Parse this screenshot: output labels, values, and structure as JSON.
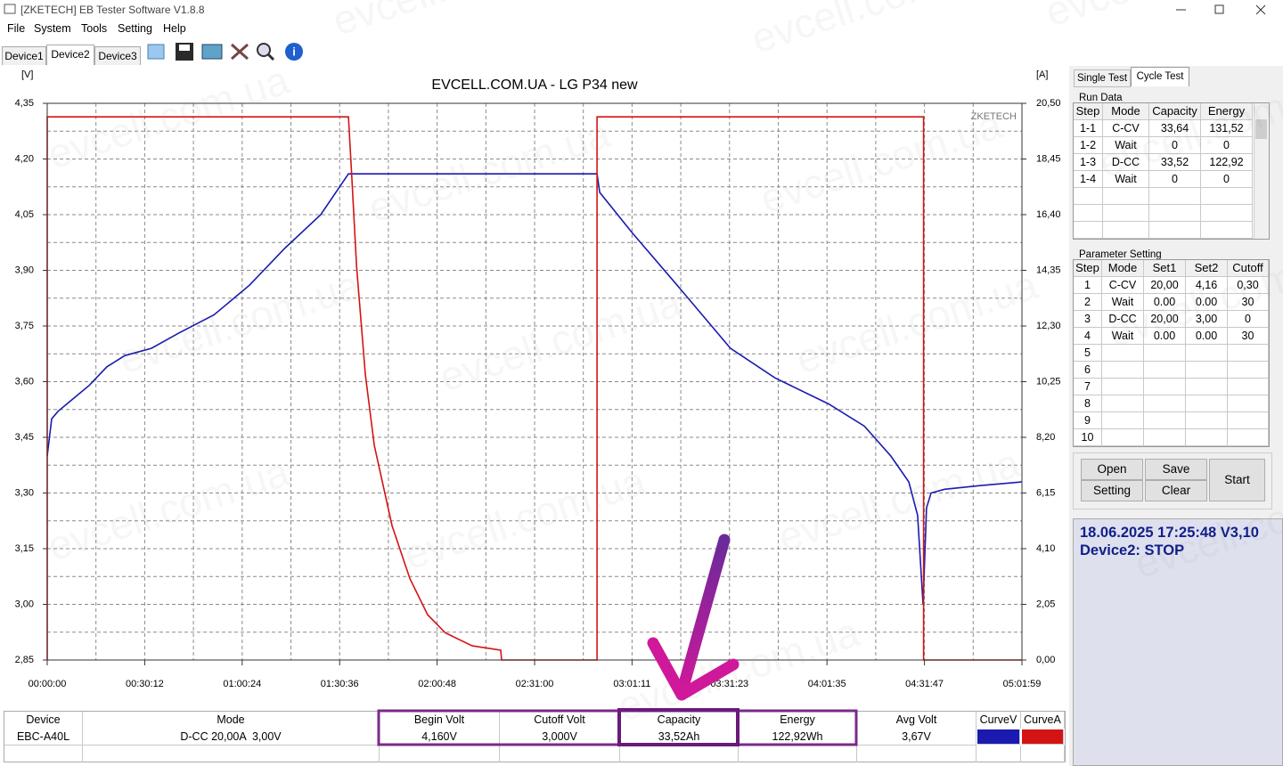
{
  "window": {
    "title": "[ZKETECH] EB Tester Software V1.8.8"
  },
  "menu": [
    "File",
    "System",
    "Tools",
    "Setting",
    "Help"
  ],
  "device_tabs": [
    "Device1",
    "Device2",
    "Device3"
  ],
  "watermark": "evcell.com.ua",
  "chart_data": {
    "type": "line",
    "title": "EVCELL.COM.UA - LG P34 new",
    "y_label": "[V]",
    "y2_label": "[A]",
    "brand": "ZKETECH",
    "grid": true,
    "xlim": [
      0,
      18119
    ],
    "xticks": [
      {
        "value": 0,
        "label": "00:00:00"
      },
      {
        "value": 1812,
        "label": "00:30:12"
      },
      {
        "value": 3624,
        "label": "01:00:24"
      },
      {
        "value": 5436,
        "label": "01:30:36"
      },
      {
        "value": 7248,
        "label": "02:00:48"
      },
      {
        "value": 9060,
        "label": "02:31:00"
      },
      {
        "value": 10871,
        "label": "03:01:11"
      },
      {
        "value": 12683,
        "label": "03:31:23"
      },
      {
        "value": 14495,
        "label": "04:01:35"
      },
      {
        "value": 16307,
        "label": "04:31:47"
      },
      {
        "value": 18119,
        "label": "05:01:59"
      }
    ],
    "ylim": [
      2.85,
      4.35
    ],
    "yticks": [
      {
        "value": 2.85,
        "label": "2,85"
      },
      {
        "value": 3.0,
        "label": "3,00"
      },
      {
        "value": 3.15,
        "label": "3,15"
      },
      {
        "value": 3.3,
        "label": "3,30"
      },
      {
        "value": 3.45,
        "label": "3,45"
      },
      {
        "value": 3.6,
        "label": "3,60"
      },
      {
        "value": 3.75,
        "label": "3,75"
      },
      {
        "value": 3.9,
        "label": "3,90"
      },
      {
        "value": 4.05,
        "label": "4,05"
      },
      {
        "value": 4.2,
        "label": "4,20"
      },
      {
        "value": 4.35,
        "label": "4,35"
      }
    ],
    "y2lim": [
      0,
      20.5
    ],
    "y2ticks": [
      {
        "value": 0,
        "label": "0,00"
      },
      {
        "value": 2.05,
        "label": "2,05"
      },
      {
        "value": 4.1,
        "label": "4,10"
      },
      {
        "value": 6.15,
        "label": "6,15"
      },
      {
        "value": 8.2,
        "label": "8,20"
      },
      {
        "value": 10.25,
        "label": "10,25"
      },
      {
        "value": 12.3,
        "label": "12,30"
      },
      {
        "value": 14.35,
        "label": "14,35"
      },
      {
        "value": 16.4,
        "label": "16,40"
      },
      {
        "value": 18.45,
        "label": "18,45"
      },
      {
        "value": 20.5,
        "label": "20,50"
      }
    ],
    "series": [
      {
        "name": "CurveV",
        "color": "#1a1ab0",
        "x": [
          0,
          83,
          200,
          450,
          780,
          1110,
          1440,
          1940,
          2435,
          3100,
          3760,
          4420,
          5085,
          5600,
          10220,
          10270,
          10880,
          11710,
          12700,
          13530,
          14525,
          15190,
          15680,
          16015,
          16180,
          16280,
          16345,
          16430,
          16680,
          17340,
          18119
        ],
        "values": [
          3.4,
          3.5,
          3.52,
          3.55,
          3.59,
          3.64,
          3.67,
          3.69,
          3.73,
          3.78,
          3.86,
          3.96,
          4.05,
          4.16,
          4.16,
          4.11,
          4.0,
          3.86,
          3.69,
          3.61,
          3.54,
          3.48,
          3.4,
          3.33,
          3.24,
          3.0,
          3.26,
          3.3,
          3.31,
          3.32,
          3.33
        ]
      },
      {
        "name": "CurveA",
        "color": "#d41414",
        "axis": "y2",
        "x": [
          0,
          0,
          5600,
          5665,
          5750,
          5915,
          6080,
          6410,
          6740,
          7070,
          7400,
          7900,
          8430,
          8447,
          10220,
          10220,
          16290,
          16290,
          18119
        ],
        "values": [
          0,
          20.0,
          20.0,
          17.7,
          14.5,
          10.5,
          7.9,
          4.95,
          3.0,
          1.67,
          1.0,
          0.52,
          0.36,
          0,
          0,
          20.0,
          20.0,
          0,
          0
        ]
      }
    ]
  },
  "side_tabs": [
    "Single Test",
    "Cycle Test"
  ],
  "run_data": {
    "label": "Run Data",
    "columns": [
      "Step",
      "Mode",
      "Capacity",
      "Energy"
    ],
    "rows": [
      [
        "1-1",
        "C-CV",
        "33,64",
        "131,52"
      ],
      [
        "1-2",
        "Wait",
        "0",
        "0"
      ],
      [
        "1-3",
        "D-CC",
        "33,52",
        "122,92"
      ],
      [
        "1-4",
        "Wait",
        "0",
        "0"
      ]
    ]
  },
  "parameter_setting": {
    "label": "Parameter Setting",
    "columns": [
      "Step",
      "Mode",
      "Set1",
      "Set2",
      "Cutoff"
    ],
    "rows": [
      [
        "1",
        "C-CV",
        "20,00",
        "4,16",
        "0,30"
      ],
      [
        "2",
        "Wait",
        "0.00",
        "0.00",
        "30"
      ],
      [
        "3",
        "D-CC",
        "20,00",
        "3,00",
        "0"
      ],
      [
        "4",
        "Wait",
        "0.00",
        "0.00",
        "30"
      ],
      [
        "5"
      ],
      [
        "6"
      ],
      [
        "7"
      ],
      [
        "8"
      ],
      [
        "9"
      ],
      [
        "10"
      ]
    ]
  },
  "buttons": {
    "open": "Open",
    "save": "Save",
    "setting": "Setting",
    "clear": "Clear",
    "start": "Start"
  },
  "status": {
    "line1": "18.06.2025 17:25:48  V3,10",
    "line2": "Device2: STOP"
  },
  "summary": {
    "columns": [
      "Device",
      "Mode",
      "Begin Volt",
      "Cutoff Volt",
      "Capacity",
      "Energy",
      "Avg Volt"
    ],
    "row": [
      "EBC-A40L",
      "D-CC 20,00A  3,00V",
      "4,160V",
      "3,000V",
      "33,52Ah",
      "122,92Wh",
      "3,67V"
    ]
  }
}
